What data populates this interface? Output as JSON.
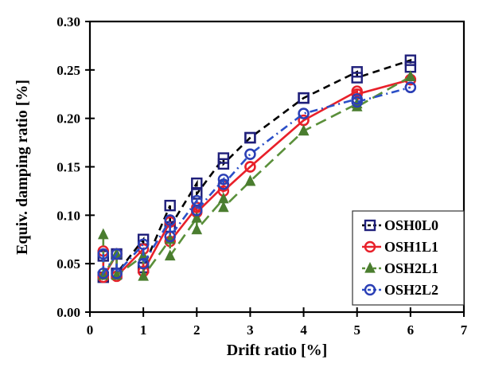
{
  "chart_data": {
    "type": "line",
    "title": "",
    "xlabel": "Drift ratio [%]",
    "ylabel": "Equiv. damping ratio [%]",
    "xlim": [
      0,
      7
    ],
    "ylim": [
      0,
      0.3
    ],
    "xticks": [
      "0",
      "1",
      "2",
      "3",
      "4",
      "5",
      "6",
      "7"
    ],
    "xtick_values": [
      0,
      1,
      2,
      3,
      4,
      5,
      6,
      7
    ],
    "yticks": [
      "0.00",
      "0.05",
      "0.10",
      "0.15",
      "0.20",
      "0.25",
      "0.30"
    ],
    "ytick_values": [
      0,
      0.05,
      0.1,
      0.15,
      0.2,
      0.25,
      0.3
    ],
    "grid": false,
    "legend_position": "bottom-right",
    "x": [
      0.25,
      0.5,
      1,
      1.5,
      2,
      2.5,
      3,
      4,
      5,
      6
    ],
    "series": [
      {
        "name": "OSH0L0",
        "marker": "square",
        "line_style": "dashed",
        "marker_color": "#1f1f7a",
        "line_color": "#000000",
        "values_cycle1": [
          0.058,
          0.06,
          0.075,
          0.11,
          0.133,
          0.159,
          0.18,
          0.221,
          0.248,
          0.26
        ],
        "values_cycle2": [
          0.036,
          0.04,
          0.046,
          0.088,
          0.122,
          0.153,
          0.18,
          0.221,
          0.242,
          0.253
        ]
      },
      {
        "name": "OSH1L1",
        "marker": "circle",
        "line_style": "solid",
        "marker_color": "#e8202a",
        "line_color": "#e8202a",
        "values_cycle1": [
          0.063,
          0.06,
          0.065,
          0.093,
          0.108,
          0.13,
          0.15,
          0.198,
          0.228,
          0.24
        ],
        "values_cycle2": [
          0.036,
          0.037,
          0.042,
          0.073,
          0.103,
          0.125,
          0.15,
          0.198,
          0.225,
          0.24
        ]
      },
      {
        "name": "OSH2L1",
        "marker": "triangle",
        "line_style": "long-dash",
        "marker_color": "#4a7d2f",
        "line_color": "#5a8f3a",
        "values_cycle1": [
          0.08,
          0.06,
          0.058,
          0.075,
          0.097,
          0.117,
          0.135,
          0.187,
          0.215,
          0.243
        ],
        "values_cycle2": [
          0.038,
          0.038,
          0.037,
          0.058,
          0.085,
          0.108,
          0.135,
          0.187,
          0.212,
          0.243
        ]
      },
      {
        "name": "OSH2L2",
        "marker": "open-circle",
        "line_style": "dash-dot",
        "marker_color": "#2b3fb5",
        "line_color": "#2b4fc7",
        "values_cycle1": [
          0.06,
          0.06,
          0.07,
          0.095,
          0.115,
          0.137,
          0.163,
          0.205,
          0.22,
          0.232
        ],
        "values_cycle2": [
          0.04,
          0.04,
          0.05,
          0.078,
          0.105,
          0.132,
          0.163,
          0.205,
          0.217,
          0.232
        ]
      }
    ]
  }
}
